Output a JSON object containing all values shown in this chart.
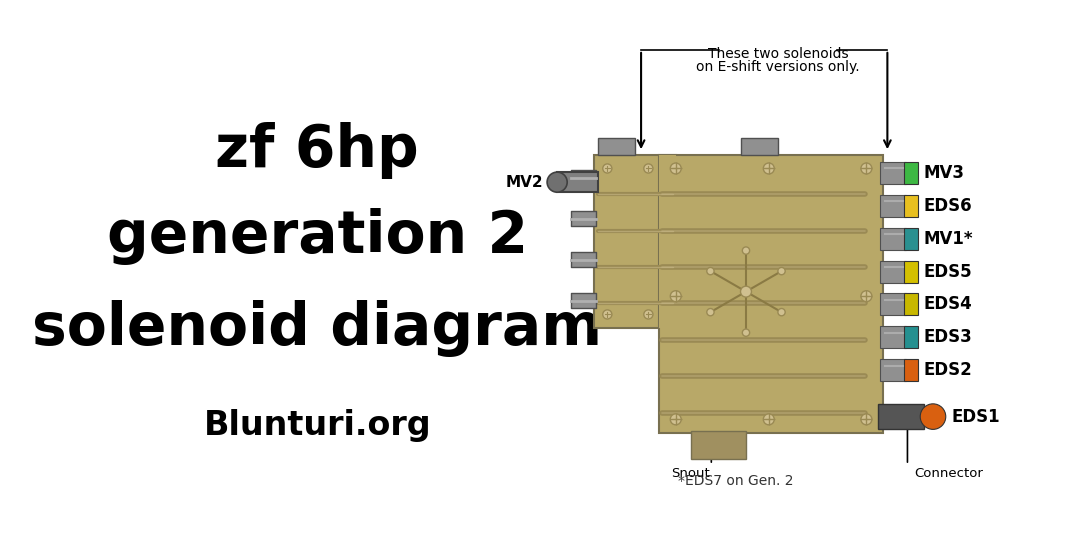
{
  "title_line1": "zf 6hp",
  "title_line2": "generation 2",
  "title_line3": "solenoid diagram",
  "subtitle": "Blunturi.org",
  "note_eshift_l1": "These two solenoids",
  "note_eshift_l2": "on E-shift versions only.",
  "note_gen2": "*EDS7 on Gen. 2",
  "label_mv2": "MV2",
  "label_snout": "Snout",
  "label_connector": "Connector",
  "solenoids": [
    {
      "name": "MV3",
      "color": "#3db843",
      "cap_color": "#3db843"
    },
    {
      "name": "EDS6",
      "color": "#e8c020",
      "cap_color": "#e8c020"
    },
    {
      "name": "MV1*",
      "color": "#2a9090",
      "cap_color": "#2a9090"
    },
    {
      "name": "EDS5",
      "color": "#d4c000",
      "cap_color": "#d4c000"
    },
    {
      "name": "EDS4",
      "color": "#c8b800",
      "cap_color": "#c8b800"
    },
    {
      "name": "EDS3",
      "color": "#259090",
      "cap_color": "#259090"
    },
    {
      "name": "EDS2",
      "color": "#d96010",
      "cap_color": "#d96010"
    },
    {
      "name": "EDS1",
      "color": "#d96010",
      "cap_color": "#d96010"
    }
  ],
  "bg_color": "#ffffff",
  "title_color": "#000000",
  "title_fontsize": 42,
  "subtitle_fontsize": 24,
  "label_fontsize": 11,
  "solenoid_label_fontsize": 12,
  "body_color_main": "#b8a868",
  "body_color_dark": "#9a8a54",
  "body_color_light": "#d0c090",
  "body_edge": "#787050",
  "solenoid_body_color": "#909090",
  "solenoid_body_dark": "#606060"
}
